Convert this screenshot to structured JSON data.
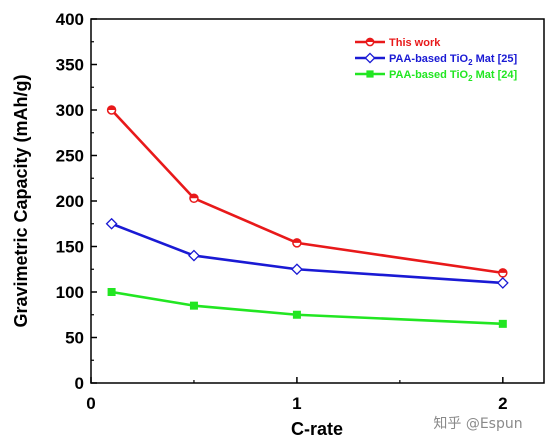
{
  "chart_data": {
    "type": "line",
    "title": "",
    "xlabel": "C-rate",
    "ylabel": "Gravimetric Capacity (mAh/g)",
    "xlim": [
      0,
      2.2
    ],
    "ylim": [
      0,
      400
    ],
    "x_ticks": [
      0,
      1,
      2
    ],
    "y_ticks": [
      0,
      50,
      100,
      150,
      200,
      250,
      300,
      350,
      400
    ],
    "grid": false,
    "legend_position": "top-right",
    "series": [
      {
        "name": "This work",
        "name_parts": [
          "This work"
        ],
        "color": "#e8191a",
        "marker": "circle-half",
        "x": [
          0.1,
          0.5,
          1,
          2
        ],
        "values": [
          300,
          203,
          154,
          121
        ]
      },
      {
        "name": "PAA-based TiO2 Mat [25]",
        "name_parts": [
          "PAA-based TiO",
          "2",
          " Mat [25]"
        ],
        "color": "#1a1ad4",
        "marker": "diamond-open",
        "x": [
          0.1,
          0.5,
          1,
          2
        ],
        "values": [
          175,
          140,
          125,
          110
        ]
      },
      {
        "name": "PAA-based TiO2 Mat [24]",
        "name_parts": [
          "PAA-based TiO",
          "2",
          " Mat [24]"
        ],
        "color": "#22e622",
        "marker": "square",
        "x": [
          0.1,
          0.5,
          1,
          2
        ],
        "values": [
          100,
          85,
          75,
          65
        ]
      }
    ]
  },
  "watermark": "知乎 @Espun"
}
